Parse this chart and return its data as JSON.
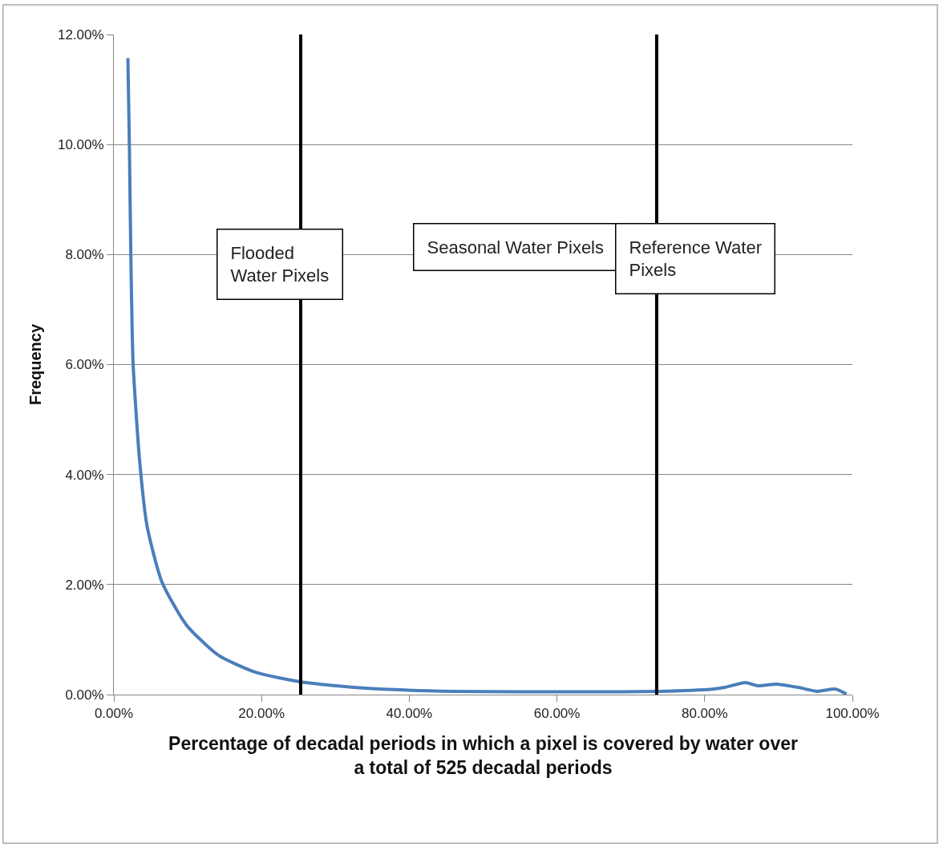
{
  "chart_data": {
    "type": "line",
    "xlabel": "Percentage of decadal periods in which a pixel is covered by water over\na total of 525 decadal periods",
    "ylabel": "Frequency",
    "x": [
      1.9,
      2.1,
      2.3,
      2.6,
      3.5,
      4.5,
      6.5,
      9.8,
      14.1,
      19.1,
      25.4,
      33.7,
      46,
      64,
      73.7,
      81,
      82.7,
      85.5,
      87.2,
      89.7,
      92.7,
      95.2,
      97.7,
      99.2
    ],
    "series": [
      {
        "color": "#4a7ebb",
        "values": [
          11.57,
          10.0,
          7.98,
          6.03,
          4.23,
          3.06,
          2.05,
          1.27,
          0.72,
          0.41,
          0.23,
          0.12,
          0.06,
          0.05,
          0.06,
          0.1,
          0.13,
          0.22,
          0.16,
          0.19,
          0.13,
          0.06,
          0.1,
          0.01
        ]
      }
    ],
    "xlim": [
      0,
      100
    ],
    "xticks": [
      {
        "value": 0,
        "label": "0.00%"
      },
      {
        "value": 20,
        "label": "20.00%"
      },
      {
        "value": 40,
        "label": "40.00%"
      },
      {
        "value": 60,
        "label": "60.00%"
      },
      {
        "value": 80,
        "label": "80.00%"
      },
      {
        "value": 100,
        "label": "100.00%"
      }
    ],
    "ylim": [
      0,
      12
    ],
    "yticks": [
      {
        "value": 0,
        "label": "0.00%"
      },
      {
        "value": 2,
        "label": "2.00%"
      },
      {
        "value": 4,
        "label": "4.00%"
      },
      {
        "value": 6,
        "label": "6.00%"
      },
      {
        "value": 8,
        "label": "8.00%"
      },
      {
        "value": 10,
        "label": "10.00%"
      },
      {
        "value": 12,
        "label": "12.00%"
      }
    ],
    "grid": "y",
    "marker": "none",
    "line_style": "solid",
    "ref_lines": [
      {
        "axis": "x",
        "value": 25.3,
        "color": "#000000"
      },
      {
        "axis": "x",
        "value": 73.5,
        "color": "#000000"
      }
    ],
    "annotations": [
      "Flooded\nWater Pixels",
      "Seasonal Water Pixels",
      "Reference Water\nPixels"
    ]
  }
}
